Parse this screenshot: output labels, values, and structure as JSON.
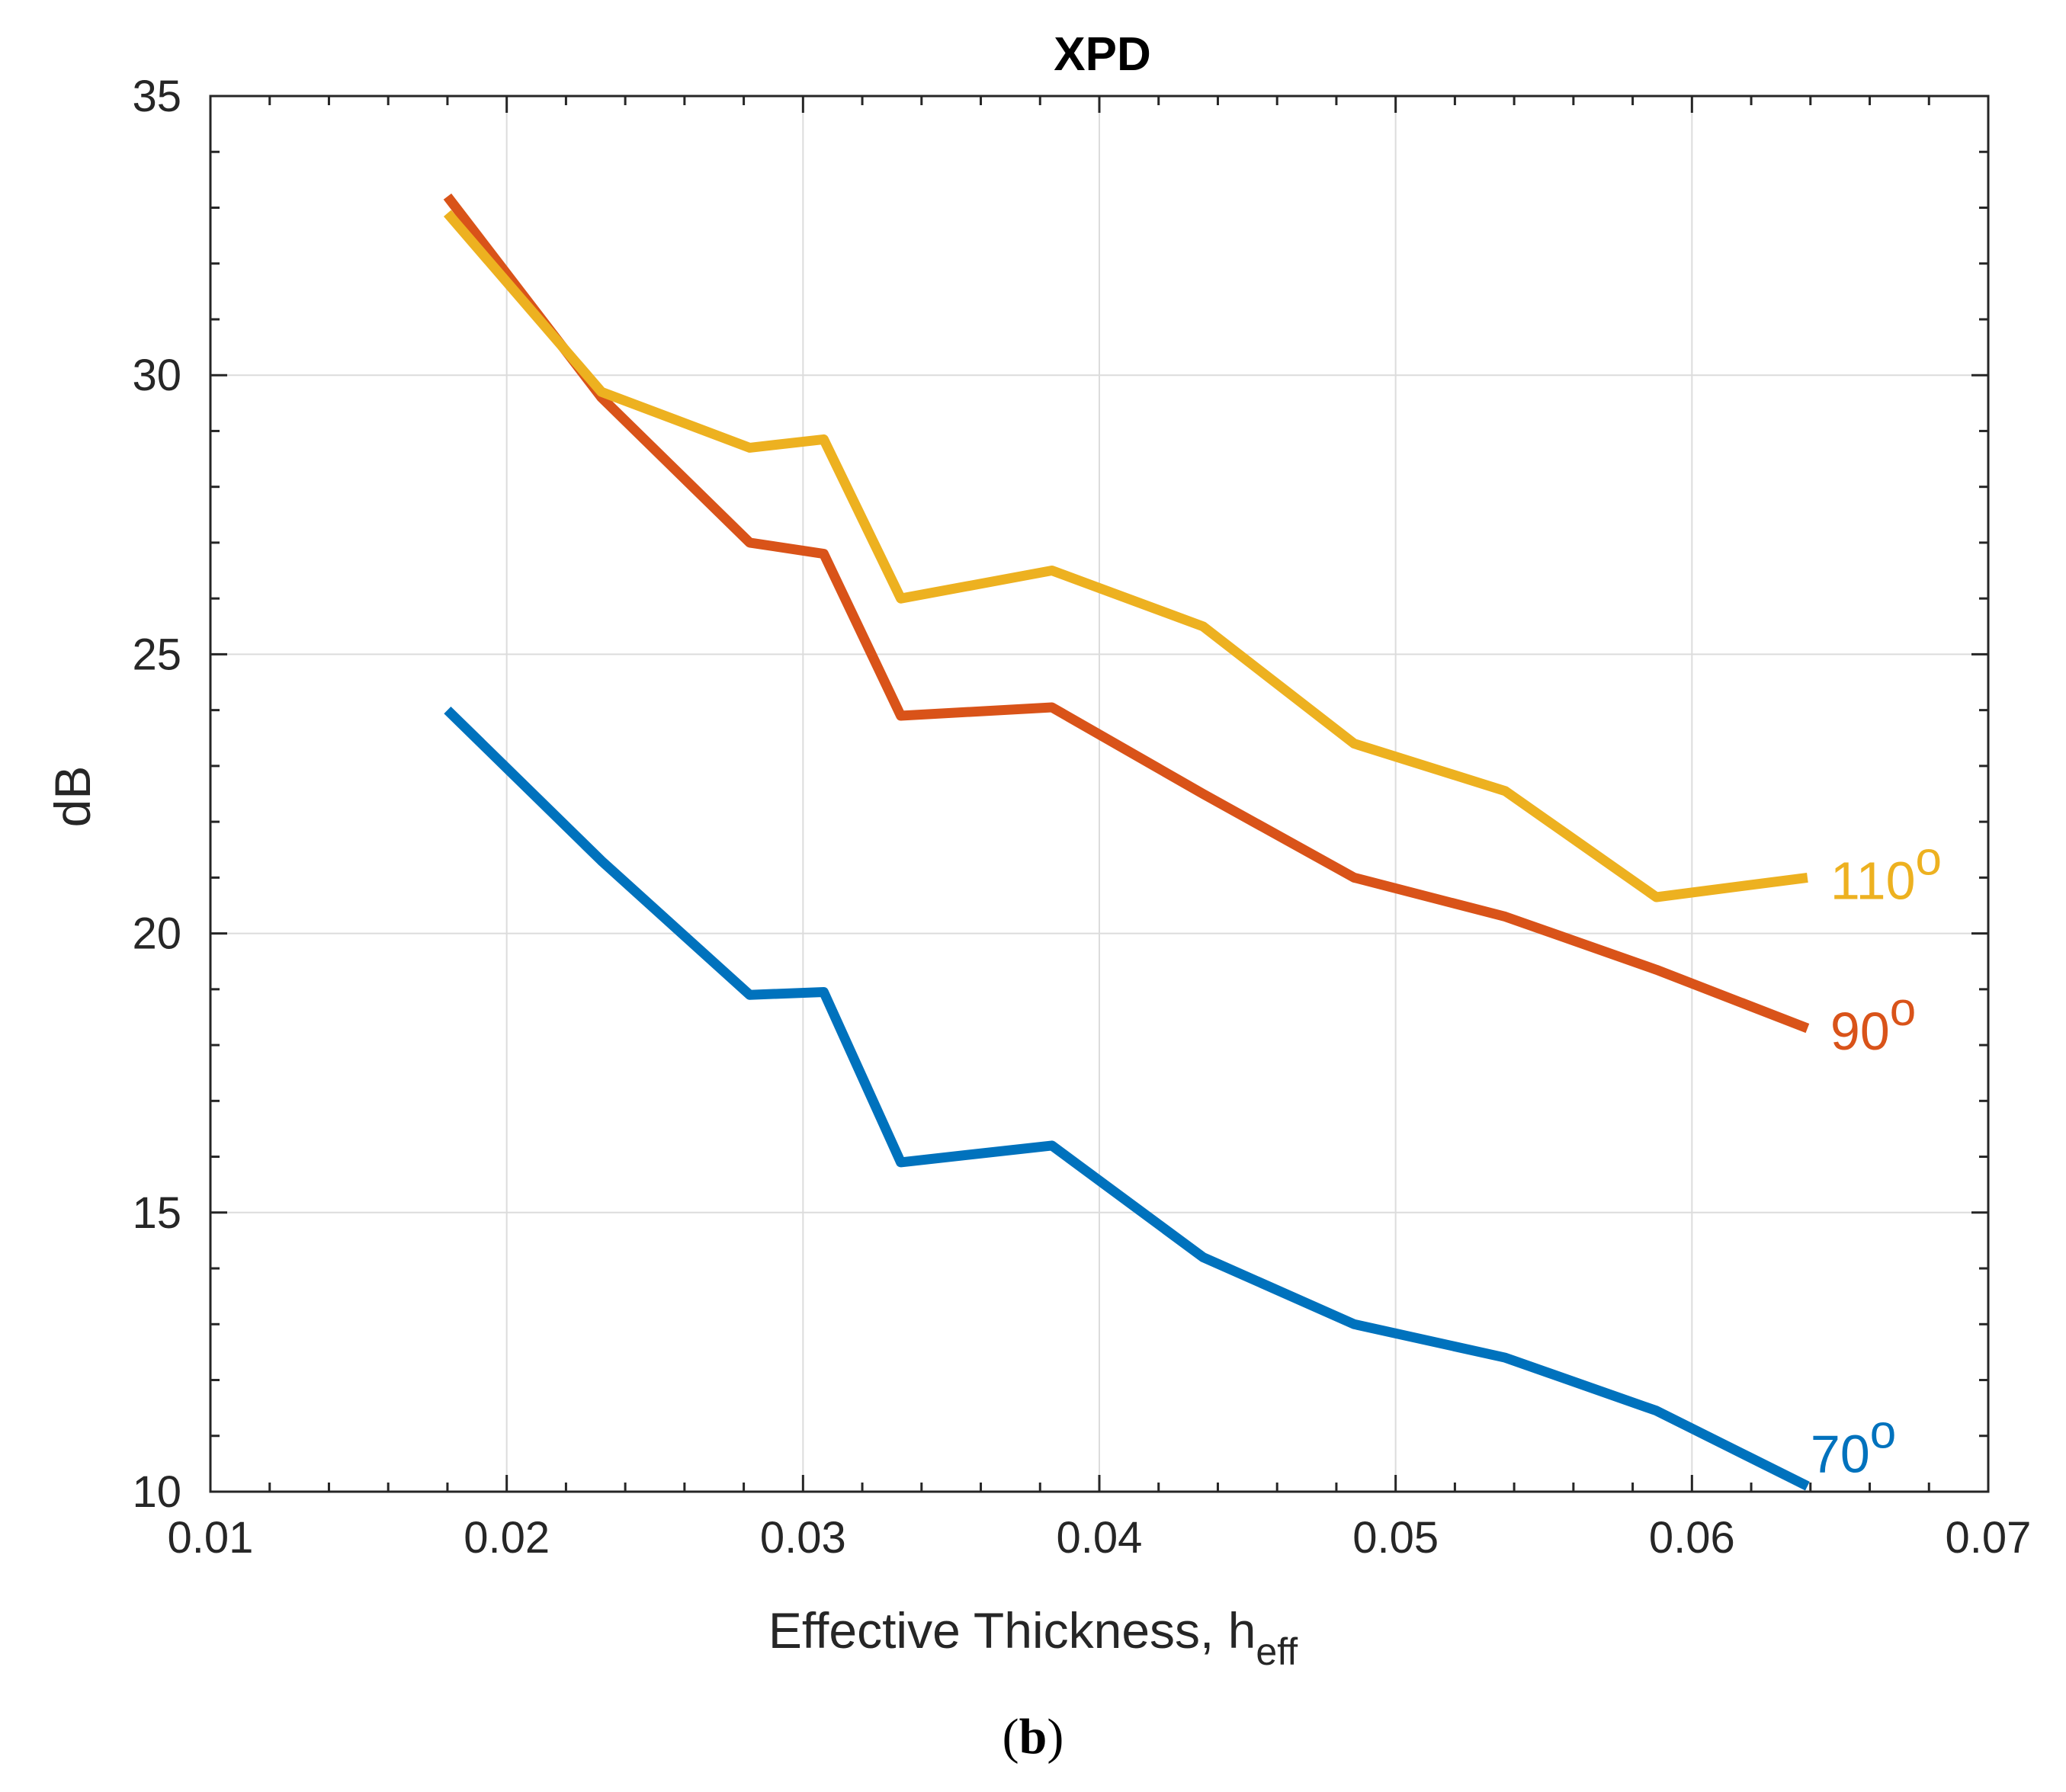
{
  "chart_data": {
    "type": "line",
    "title": "XPD",
    "xlabel": "Effective Thickness, h",
    "xlabel_subscript": "eff",
    "ylabel": "dB",
    "caption_open": "(",
    "caption_letter": "b",
    "caption_close": ")",
    "xlim": [
      0.01,
      0.07
    ],
    "ylim": [
      10,
      35
    ],
    "x_ticks": [
      0.01,
      0.02,
      0.03,
      0.04,
      0.05,
      0.06,
      0.07
    ],
    "x_tick_labels": [
      "0.01",
      "0.02",
      "0.03",
      "0.04",
      "0.05",
      "0.06",
      "0.07"
    ],
    "y_ticks": [
      10,
      15,
      20,
      25,
      30,
      35
    ],
    "y_tick_labels": [
      "10",
      "15",
      "20",
      "25",
      "30",
      "35"
    ],
    "grid": true,
    "series": [
      {
        "name": "70",
        "label_text": "70",
        "degree_symbol": "o",
        "color": "#0072BD",
        "x": [
          0.018,
          0.0232,
          0.0282,
          0.0307,
          0.0333,
          0.0384,
          0.0435,
          0.0486,
          0.0537,
          0.0588,
          0.0639
        ],
        "y": [
          24.0,
          21.3,
          18.9,
          18.95,
          15.9,
          16.2,
          14.2,
          13.0,
          12.4,
          11.45,
          10.1
        ]
      },
      {
        "name": "90",
        "label_text": "90",
        "degree_symbol": "o",
        "color": "#D95319",
        "x": [
          0.018,
          0.0232,
          0.0282,
          0.0307,
          0.0333,
          0.0384,
          0.0435,
          0.0486,
          0.0537,
          0.0588,
          0.0639
        ],
        "y": [
          33.2,
          29.6,
          27.0,
          26.8,
          23.9,
          24.05,
          22.5,
          21.0,
          20.3,
          19.35,
          18.3
        ]
      },
      {
        "name": "110",
        "label_text": "110",
        "degree_symbol": "o",
        "color": "#EDB120",
        "x": [
          0.018,
          0.0232,
          0.0282,
          0.0307,
          0.0333,
          0.0384,
          0.0435,
          0.0486,
          0.0537,
          0.0588,
          0.0639
        ],
        "y": [
          32.9,
          29.7,
          28.7,
          28.85,
          26.0,
          26.5,
          25.5,
          23.4,
          22.55,
          20.65,
          21.0
        ]
      }
    ]
  }
}
